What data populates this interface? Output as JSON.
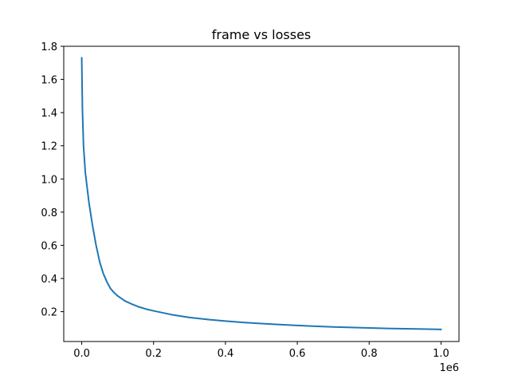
{
  "chart_data": {
    "type": "line",
    "title": "frame vs losses",
    "xlabel": "",
    "ylabel": "",
    "x_offset_label": "1e6",
    "xlim": [
      -0.05,
      1.05
    ],
    "ylim": [
      0.02,
      1.8
    ],
    "x_ticks": [
      0.0,
      0.2,
      0.4,
      0.6,
      0.8,
      1.0
    ],
    "x_tick_labels": [
      "0.0",
      "0.2",
      "0.4",
      "0.6",
      "0.8",
      "1.0"
    ],
    "y_ticks": [
      0.2,
      0.4,
      0.6,
      0.8,
      1.0,
      1.2,
      1.4,
      1.6,
      1.8
    ],
    "y_tick_labels": [
      "0.2",
      "0.4",
      "0.6",
      "0.8",
      "1.0",
      "1.2",
      "1.4",
      "1.6",
      "1.8"
    ],
    "grid": false,
    "series": [
      {
        "color": "#1f77b4",
        "x": [
          0.0,
          0.002,
          0.005,
          0.01,
          0.015,
          0.02,
          0.03,
          0.04,
          0.05,
          0.06,
          0.07,
          0.08,
          0.09,
          0.1,
          0.12,
          0.14,
          0.16,
          0.18,
          0.2,
          0.25,
          0.3,
          0.35,
          0.4,
          0.45,
          0.5,
          0.55,
          0.6,
          0.65,
          0.7,
          0.75,
          0.8,
          0.85,
          0.9,
          0.95,
          1.0
        ],
        "y": [
          1.73,
          1.42,
          1.2,
          1.04,
          0.95,
          0.86,
          0.72,
          0.6,
          0.5,
          0.43,
          0.38,
          0.34,
          0.315,
          0.295,
          0.265,
          0.245,
          0.228,
          0.215,
          0.205,
          0.182,
          0.165,
          0.153,
          0.143,
          0.135,
          0.128,
          0.122,
          0.117,
          0.112,
          0.108,
          0.105,
          0.102,
          0.099,
          0.097,
          0.095,
          0.093
        ]
      }
    ]
  }
}
